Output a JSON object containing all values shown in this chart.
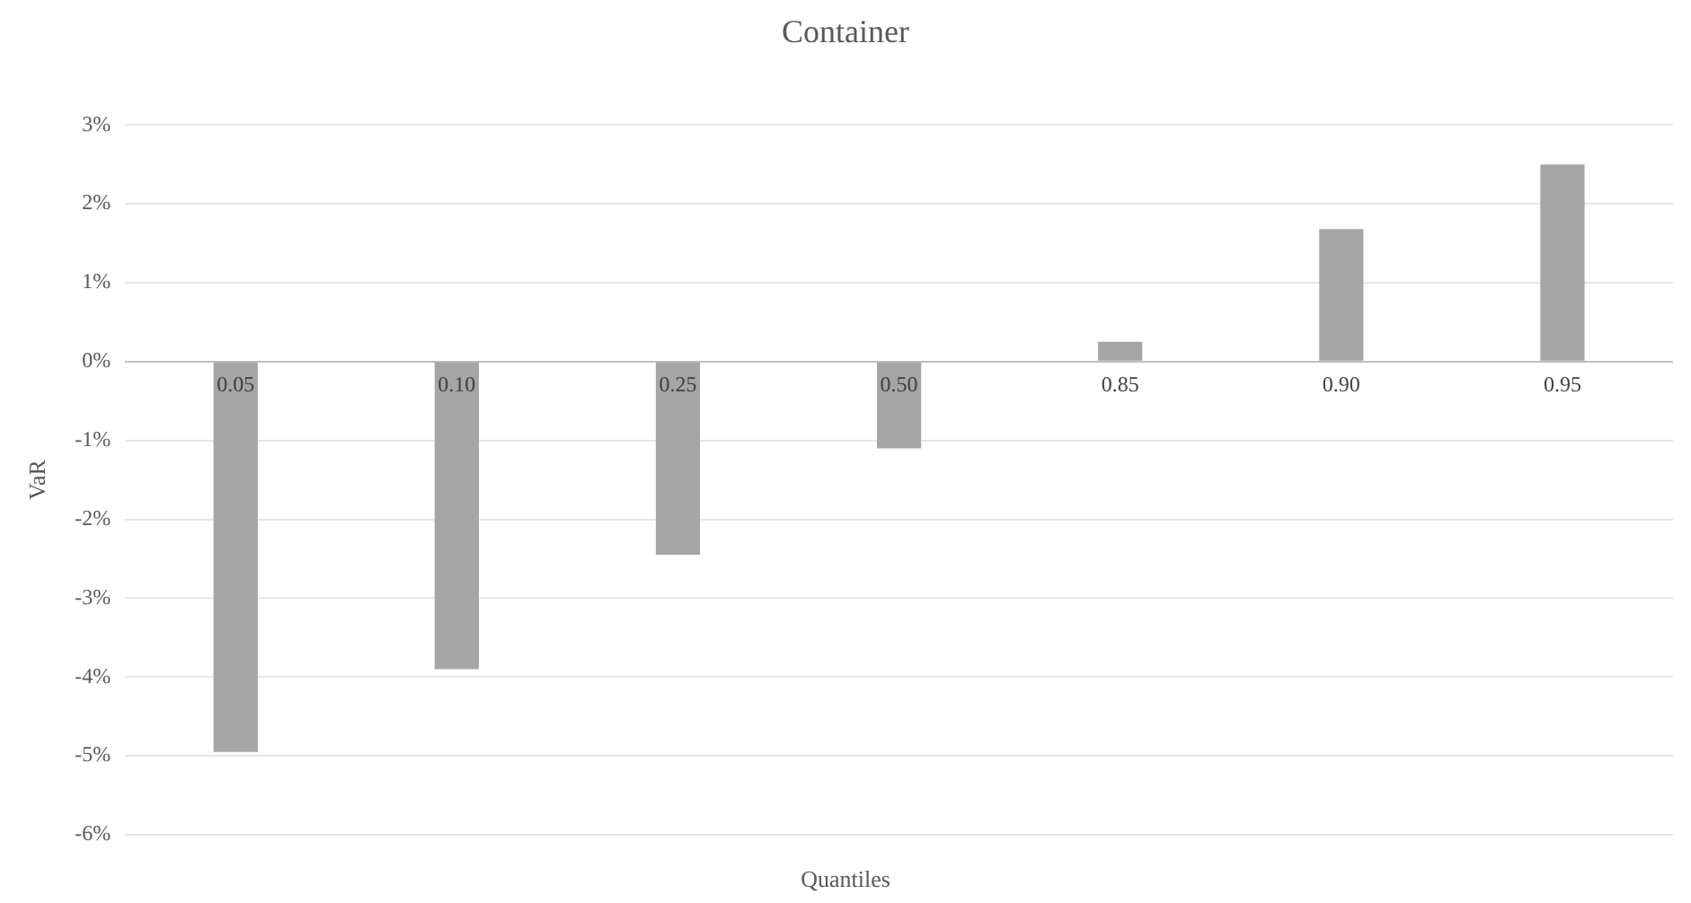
{
  "chart_data": {
    "type": "bar",
    "title": "Container",
    "xlabel": "Quantiles",
    "ylabel": "VaR",
    "categories": [
      "0.05",
      "0.10",
      "0.25",
      "0.50",
      "0.85",
      "0.90",
      "0.95"
    ],
    "values": [
      -4.95,
      -3.9,
      -2.45,
      -1.1,
      0.25,
      1.68,
      2.5
    ],
    "color": "#a5a5a5",
    "ylim": [
      -6,
      3
    ],
    "yticks": [
      {
        "value": -6,
        "label": "-6%"
      },
      {
        "value": -5,
        "label": "-5%"
      },
      {
        "value": -4,
        "label": "-4%"
      },
      {
        "value": -3,
        "label": "-3%"
      },
      {
        "value": -2,
        "label": "-2%"
      },
      {
        "value": -1,
        "label": "-1%"
      },
      {
        "value": 0,
        "label": "0%"
      },
      {
        "value": 1,
        "label": "1%"
      },
      {
        "value": 2,
        "label": "2%"
      },
      {
        "value": 3,
        "label": "3%"
      }
    ],
    "grid": "y",
    "legend": false
  }
}
